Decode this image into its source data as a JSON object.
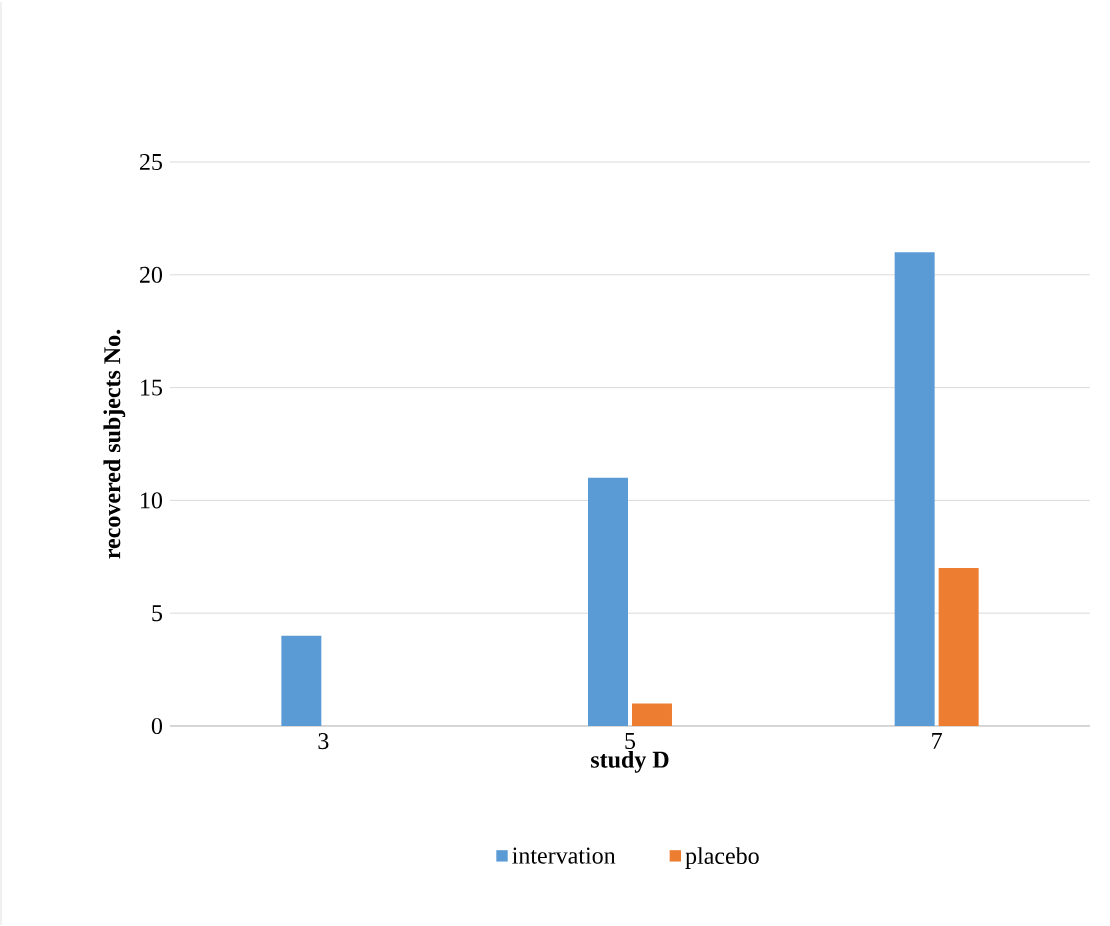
{
  "chart_data": {
    "type": "bar",
    "xlabel": "study D",
    "ylabel": "recovered subjects No.",
    "categories": [
      "3",
      "5",
      "7"
    ],
    "series": [
      {
        "name": "intervation",
        "color": "#5b9bd5",
        "values": [
          4,
          11,
          21
        ]
      },
      {
        "name": "placebo",
        "color": "#ed7d31",
        "values": [
          0,
          1,
          7
        ]
      }
    ],
    "ylim": [
      0,
      25
    ],
    "yticks": [
      0,
      5,
      10,
      15,
      20,
      25
    ],
    "grid": "y",
    "legend": "bottom"
  }
}
